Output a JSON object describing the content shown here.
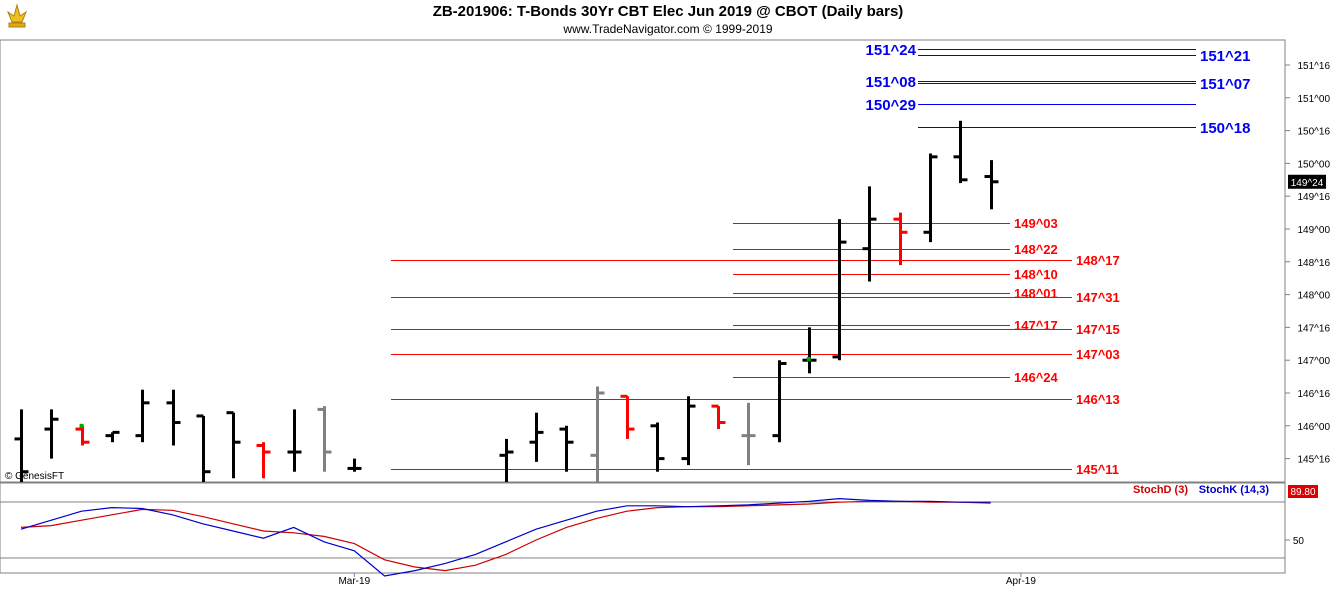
{
  "header": {
    "title": "ZB-201906:  T-Bonds 30Yr CBT Elec Jun 2019 @ CBOT  (Daily bars)",
    "subtitle": "www.TradeNavigator.com © 1999-2019",
    "watermark": "© GenesisFT"
  },
  "colors": {
    "bar_up": "#000000",
    "bar_down": "#ff0000",
    "bar_gray": "#808080",
    "blue_level": "#0000ee",
    "red_level": "#ff0000",
    "stoch_d": "#cc0000",
    "stoch_k": "#0000cc",
    "price_tag_bg": "#000000",
    "stoch_tag_bg": "#dd0000"
  },
  "chart_data": [
    {
      "type": "ohlc",
      "title": "ZB-201906:  T-Bonds 30Yr CBT Elec Jun 2019 @ CBOT  (Daily bars)",
      "y_axis_ticks": [
        "151^16",
        "151^00",
        "150^16",
        "150^00",
        "149^16",
        "149^00",
        "148^16",
        "148^00",
        "147^16",
        "147^00",
        "146^16",
        "146^00",
        "145^16"
      ],
      "y_axis_values": [
        151.5,
        151.0,
        150.5,
        150.0,
        149.5,
        149.0,
        148.5,
        148.0,
        147.5,
        147.0,
        146.5,
        146.0,
        145.5
      ],
      "ylim": [
        145.2,
        151.8
      ],
      "last_price_label": "149^24",
      "x_axis_labels": [
        {
          "label": "Mar-19",
          "bar": 11
        },
        {
          "label": "Apr-19",
          "bar": 33
        }
      ],
      "bars": [
        {
          "bar": 0,
          "o": 145.8,
          "h": 146.25,
          "l": 145.1,
          "c": 145.3,
          "color": "black"
        },
        {
          "bar": 1,
          "o": 145.95,
          "h": 146.25,
          "l": 145.5,
          "c": 146.1,
          "color": "black"
        },
        {
          "bar": 2,
          "o": 145.95,
          "h": 146.0,
          "l": 145.7,
          "c": 145.75,
          "color": "red"
        },
        {
          "bar": 3,
          "o": 145.85,
          "h": 145.9,
          "l": 145.75,
          "c": 145.9,
          "color": "black"
        },
        {
          "bar": 4,
          "o": 145.85,
          "h": 146.55,
          "l": 145.75,
          "c": 146.35,
          "color": "black"
        },
        {
          "bar": 5,
          "o": 146.35,
          "h": 146.55,
          "l": 145.7,
          "c": 146.05,
          "color": "black"
        },
        {
          "bar": 6,
          "o": 146.15,
          "h": 146.15,
          "l": 145.1,
          "c": 145.3,
          "color": "black"
        },
        {
          "bar": 7,
          "o": 146.2,
          "h": 146.2,
          "l": 145.2,
          "c": 145.75,
          "color": "black"
        },
        {
          "bar": 8,
          "o": 145.7,
          "h": 145.75,
          "l": 145.2,
          "c": 145.6,
          "color": "red"
        },
        {
          "bar": 9,
          "o": 145.6,
          "h": 146.25,
          "l": 145.3,
          "c": 145.6,
          "color": "black"
        },
        {
          "bar": 10,
          "o": 146.25,
          "h": 146.3,
          "l": 145.3,
          "c": 145.6,
          "color": "gray"
        },
        {
          "bar": 11,
          "o": 145.35,
          "h": 145.5,
          "l": 145.3,
          "c": 145.35,
          "color": "black"
        },
        {
          "bar": 16,
          "o": 145.55,
          "h": 145.8,
          "l": 145.1,
          "c": 145.6,
          "color": "black"
        },
        {
          "bar": 17,
          "o": 145.75,
          "h": 146.2,
          "l": 145.45,
          "c": 145.9,
          "color": "black"
        },
        {
          "bar": 18,
          "o": 145.95,
          "h": 146.0,
          "l": 145.3,
          "c": 145.75,
          "color": "black"
        },
        {
          "bar": 19,
          "o": 145.55,
          "h": 146.6,
          "l": 145.15,
          "c": 146.5,
          "color": "gray"
        },
        {
          "bar": 20,
          "o": 146.45,
          "h": 146.45,
          "l": 145.8,
          "c": 145.95,
          "color": "red"
        },
        {
          "bar": 21,
          "o": 146.0,
          "h": 146.05,
          "l": 145.3,
          "c": 145.5,
          "color": "black"
        },
        {
          "bar": 22,
          "o": 145.5,
          "h": 146.45,
          "l": 145.4,
          "c": 146.3,
          "color": "black"
        },
        {
          "bar": 23,
          "o": 146.3,
          "h": 146.3,
          "l": 145.95,
          "c": 146.05,
          "color": "red"
        },
        {
          "bar": 24,
          "o": 145.85,
          "h": 146.35,
          "l": 145.4,
          "c": 145.85,
          "color": "gray"
        },
        {
          "bar": 25,
          "o": 145.85,
          "h": 147.0,
          "l": 145.75,
          "c": 146.95,
          "color": "black"
        },
        {
          "bar": 26,
          "o": 147.0,
          "h": 147.5,
          "l": 146.8,
          "c": 147.0,
          "color": "black"
        },
        {
          "bar": 27,
          "o": 147.05,
          "h": 149.15,
          "l": 147.0,
          "c": 148.8,
          "color": "black"
        },
        {
          "bar": 28,
          "o": 148.7,
          "h": 149.65,
          "l": 148.2,
          "c": 149.15,
          "color": "black"
        },
        {
          "bar": 29,
          "o": 149.15,
          "h": 149.25,
          "l": 148.45,
          "c": 148.95,
          "color": "red"
        },
        {
          "bar": 30,
          "o": 148.95,
          "h": 150.15,
          "l": 148.8,
          "c": 150.1,
          "color": "black"
        },
        {
          "bar": 31,
          "o": 150.1,
          "h": 150.65,
          "l": 149.7,
          "c": 149.75,
          "color": "black"
        },
        {
          "bar": 32,
          "o": 149.8,
          "h": 150.05,
          "l": 149.3,
          "c": 149.72,
          "color": "black"
        }
      ],
      "markers": [
        {
          "bar": 2,
          "price": 146.0,
          "color": "#00aa00"
        },
        {
          "bar": 26,
          "price": 147.02,
          "color": "#00aa00"
        }
      ],
      "levels": [
        {
          "label": "151^24",
          "price": 151.75,
          "color": "blue",
          "from_bar": 30,
          "label_side": "left"
        },
        {
          "label": "151^21",
          "price": 151.66,
          "color": "blue",
          "from_bar": 30,
          "label_side": "right"
        },
        {
          "label": "151^08",
          "price": 151.25,
          "color": "blue",
          "from_bar": 30,
          "label_side": "left"
        },
        {
          "label": "151^07",
          "price": 151.22,
          "color": "blue",
          "from_bar": 30,
          "label_side": "right"
        },
        {
          "label": "150^29",
          "price": 150.91,
          "color": "blue",
          "from_bar": 30,
          "label_side": "left"
        },
        {
          "label": "150^18",
          "price": 150.56,
          "color": "blue",
          "from_bar": 30,
          "label_side": "right"
        },
        {
          "label": "149^03",
          "price": 149.09,
          "color": "red",
          "from_bar": 24,
          "label_side": "right"
        },
        {
          "label": "148^22",
          "price": 148.69,
          "color": "red",
          "from_bar": 24,
          "label_side": "right"
        },
        {
          "label": "148^17",
          "price": 148.53,
          "color": "red",
          "from_bar": 12,
          "label_side": "right"
        },
        {
          "label": "148^10",
          "price": 148.31,
          "color": "red",
          "from_bar": 24,
          "label_side": "right"
        },
        {
          "label": "148^01",
          "price": 148.03,
          "color": "red",
          "from_bar": 24,
          "label_side": "right"
        },
        {
          "label": "147^31",
          "price": 147.97,
          "color": "red",
          "from_bar": 12,
          "label_side": "right"
        },
        {
          "label": "147^17",
          "price": 147.53,
          "color": "red",
          "from_bar": 24,
          "label_side": "right"
        },
        {
          "label": "147^15",
          "price": 147.47,
          "color": "red",
          "from_bar": 12,
          "label_side": "right"
        },
        {
          "label": "147^03",
          "price": 147.09,
          "color": "red",
          "from_bar": 12,
          "label_side": "right"
        },
        {
          "label": "146^24",
          "price": 146.75,
          "color": "red",
          "from_bar": 24,
          "label_side": "right"
        },
        {
          "label": "146^13",
          "price": 146.41,
          "color": "red",
          "from_bar": 12,
          "label_side": "right"
        },
        {
          "label": "145^11",
          "price": 145.34,
          "color": "red",
          "from_bar": 12,
          "label_side": "right"
        }
      ]
    },
    {
      "type": "line",
      "title": "",
      "legend": [
        "StochD (3)",
        "StochK (14,3)"
      ],
      "y_axis_ticks": [
        "50"
      ],
      "ylim": [
        0,
        100
      ],
      "last_value_label": "89.80",
      "series": [
        {
          "name": "StochK (14,3)",
          "color": "#0000cc",
          "x": [
            0,
            1,
            2,
            3,
            4,
            5,
            6,
            7,
            8,
            9,
            10,
            11,
            12,
            13,
            14,
            15,
            16,
            17,
            18,
            19,
            20,
            21,
            22,
            23,
            24,
            25,
            26,
            27,
            28,
            29,
            30,
            31,
            32
          ],
          "values": [
            62,
            72,
            82,
            86,
            85,
            78,
            68,
            60,
            52,
            64,
            48,
            38,
            10,
            16,
            24,
            34,
            48,
            62,
            72,
            82,
            88,
            88,
            87,
            88,
            89,
            91,
            93,
            96,
            94,
            93,
            93,
            92,
            92
          ]
        },
        {
          "name": "StochD (3)",
          "color": "#cc0000",
          "x": [
            0,
            1,
            2,
            3,
            4,
            5,
            6,
            7,
            8,
            9,
            10,
            11,
            12,
            13,
            14,
            15,
            16,
            17,
            18,
            19,
            20,
            21,
            22,
            23,
            24,
            25,
            26,
            27,
            28,
            29,
            30,
            31,
            32
          ],
          "values": [
            64,
            66,
            72,
            78,
            84,
            83,
            76,
            68,
            60,
            58,
            54,
            46,
            28,
            20,
            16,
            22,
            34,
            50,
            64,
            74,
            82,
            86,
            87,
            87,
            88,
            89,
            90,
            92,
            93,
            93,
            92,
            92,
            91
          ]
        }
      ]
    }
  ]
}
